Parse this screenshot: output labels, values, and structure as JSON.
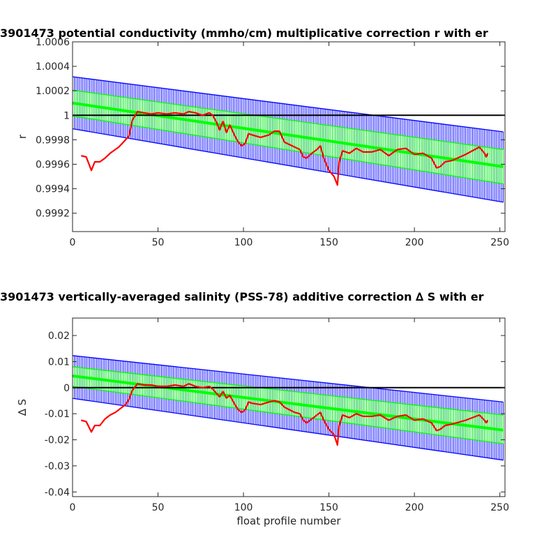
{
  "chart_data": [
    {
      "type": "line",
      "title": "3901473 potential conductivity (mmho/cm) multiplicative correction r with er",
      "xlabel": "",
      "ylabel": "r",
      "xlim": [
        0,
        253
      ],
      "ylim": [
        0.99905,
        1.0006
      ],
      "xticks": [
        0,
        50,
        100,
        150,
        200,
        250
      ],
      "xtick_labels": [
        "0",
        "50",
        "100",
        "150",
        "200",
        "250"
      ],
      "yticks": [
        0.9992,
        0.9994,
        0.9996,
        0.9998,
        1,
        1.0002,
        1.0004,
        1.0006
      ],
      "ytick_labels": [
        "0.9992",
        "0.9994",
        "0.9996",
        "0.9998",
        "1",
        "1.0002",
        "1.0004",
        "1.0006"
      ],
      "grid": false,
      "reference_line": 1,
      "correction_fit": {
        "color": "#00ff00",
        "x": [
          0,
          252
        ],
        "y": [
          1.0001,
          0.99958
        ]
      },
      "error_band_inner": {
        "color": "#00ff00",
        "upper": [
          1.000205,
          0.99972
        ],
        "lower": [
          0.999995,
          0.99944
        ]
      },
      "error_band_outer": {
        "color": "#0000ff",
        "upper": [
          1.000315,
          0.999865
        ],
        "lower": [
          0.99989,
          0.99929
        ]
      },
      "series": [
        {
          "color": "#ff0000",
          "x": [
            5,
            8,
            11,
            13,
            16,
            19,
            22,
            25,
            27,
            29,
            31,
            33,
            35,
            38,
            42,
            46,
            50,
            55,
            60,
            65,
            68,
            72,
            76,
            80,
            82,
            84,
            86,
            88,
            90,
            92,
            95,
            97,
            99,
            101,
            103,
            105,
            110,
            115,
            118,
            121,
            124,
            127,
            130,
            133,
            135,
            137,
            140,
            143,
            145,
            147,
            150,
            153,
            155,
            156,
            158,
            162,
            166,
            170,
            175,
            180,
            185,
            190,
            195,
            200,
            205,
            210,
            213,
            215,
            218,
            222,
            230,
            238,
            241,
            242,
            243
          ],
          "y": [
            0.99967,
            0.99966,
            0.99955,
            0.99962,
            0.99962,
            0.99965,
            0.99969,
            0.99972,
            0.99974,
            0.99977,
            0.9998,
            0.99983,
            0.99996,
            1.00003,
            1.00002,
            1.00001,
            1.00002,
            1.00001,
            1.00002,
            1.00001,
            1.00003,
            1.00002,
            1.0,
            1.00002,
            1.0,
            0.99995,
            0.99988,
            0.99995,
            0.99986,
            0.99992,
            0.99983,
            0.99978,
            0.99975,
            0.99977,
            0.99985,
            0.99984,
            0.99982,
            0.99984,
            0.99987,
            0.99987,
            0.99978,
            0.99976,
            0.99974,
            0.99972,
            0.99966,
            0.99965,
            0.99969,
            0.99972,
            0.99975,
            0.99965,
            0.99955,
            0.9995,
            0.99943,
            0.99962,
            0.99971,
            0.99969,
            0.99973,
            0.9997,
            0.9997,
            0.99972,
            0.99967,
            0.99972,
            0.99973,
            0.99968,
            0.99969,
            0.99965,
            0.99957,
            0.99958,
            0.99962,
            0.99963,
            0.99968,
            0.99974,
            0.99969,
            0.99966,
            0.99969
          ]
        }
      ]
    },
    {
      "type": "line",
      "title": "3901473 vertically-averaged salinity (PSS-78) additive correction ∆ S with er",
      "xlabel": "float profile number",
      "ylabel": "∆ S",
      "xlim": [
        0,
        253
      ],
      "ylim": [
        -0.0418,
        0.0267
      ],
      "xticks": [
        0,
        50,
        100,
        150,
        200,
        250
      ],
      "xtick_labels": [
        "0",
        "50",
        "100",
        "150",
        "200",
        "250"
      ],
      "yticks": [
        -0.04,
        -0.03,
        -0.02,
        -0.01,
        0,
        0.01,
        0.02
      ],
      "ytick_labels": [
        "-0.04",
        "-0.03",
        "-0.02",
        "-0.01",
        "0",
        "0.01",
        "0.02"
      ],
      "grid": false,
      "reference_line": 0,
      "correction_fit": {
        "color": "#00ff00",
        "x": [
          0,
          252
        ],
        "y": [
          0.0045,
          -0.0163
        ]
      },
      "error_band_inner": {
        "color": "#00ff00",
        "upper": [
          0.008,
          -0.0105
        ],
        "lower": [
          0.0005,
          -0.0215
        ]
      },
      "error_band_outer": {
        "color": "#0000ff",
        "upper": [
          0.0123,
          -0.0055
        ],
        "lower": [
          -0.0041,
          -0.0278
        ]
      },
      "series": [
        {
          "color": "#ff0000",
          "x": [
            5,
            8,
            11,
            13,
            16,
            19,
            22,
            25,
            27,
            29,
            31,
            33,
            35,
            38,
            42,
            46,
            50,
            55,
            60,
            65,
            68,
            72,
            76,
            80,
            82,
            84,
            86,
            88,
            90,
            92,
            95,
            97,
            99,
            101,
            103,
            105,
            110,
            115,
            118,
            121,
            124,
            127,
            130,
            133,
            135,
            137,
            140,
            143,
            145,
            147,
            150,
            153,
            155,
            156,
            158,
            162,
            166,
            170,
            175,
            180,
            185,
            190,
            195,
            200,
            205,
            210,
            213,
            215,
            218,
            222,
            230,
            238,
            241,
            242,
            243
          ],
          "y": [
            -0.0125,
            -0.013,
            -0.017,
            -0.0145,
            -0.0145,
            -0.012,
            -0.0105,
            -0.0095,
            -0.0085,
            -0.0075,
            -0.0065,
            -0.0045,
            -0.001,
            0.0015,
            0.001,
            0.001,
            0.0005,
            0.0005,
            0.001,
            0.0005,
            0.0015,
            0.0005,
            0.0,
            0.0005,
            -0.0005,
            -0.002,
            -0.0035,
            -0.0015,
            -0.004,
            -0.003,
            -0.0065,
            -0.0085,
            -0.0095,
            -0.0085,
            -0.0055,
            -0.006,
            -0.0065,
            -0.0055,
            -0.005,
            -0.0055,
            -0.0075,
            -0.0085,
            -0.0095,
            -0.01,
            -0.0125,
            -0.0135,
            -0.012,
            -0.0105,
            -0.0095,
            -0.0125,
            -0.016,
            -0.018,
            -0.022,
            -0.0145,
            -0.0105,
            -0.0115,
            -0.01,
            -0.011,
            -0.011,
            -0.0105,
            -0.0125,
            -0.011,
            -0.0105,
            -0.0125,
            -0.012,
            -0.0135,
            -0.0165,
            -0.016,
            -0.0145,
            -0.014,
            -0.0125,
            -0.0105,
            -0.0125,
            -0.0135,
            -0.0125
          ]
        }
      ]
    }
  ]
}
